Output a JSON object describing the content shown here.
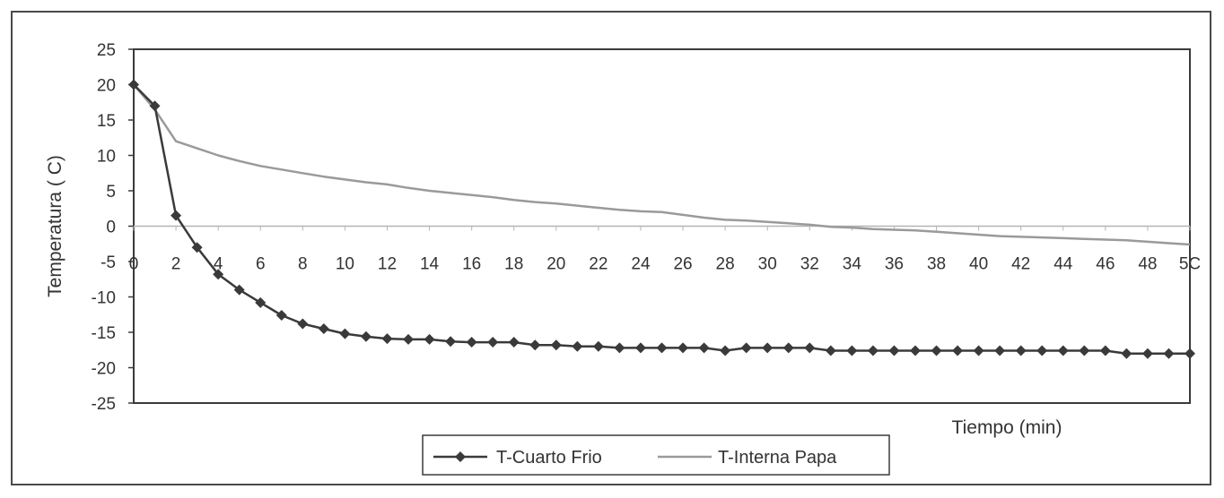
{
  "chart_data": {
    "type": "line",
    "title": "",
    "xlabel": "Tiempo (min)",
    "ylabel": "Temperatura ( C)",
    "xlim": [
      0,
      50
    ],
    "ylim": [
      -25,
      25
    ],
    "xticks": [
      "0",
      "2",
      "4",
      "6",
      "8",
      "10",
      "12",
      "14",
      "16",
      "18",
      "20",
      "22",
      "24",
      "26",
      "28",
      "30",
      "32",
      "34",
      "36",
      "38",
      "40",
      "42",
      "44",
      "46",
      "48",
      "5C"
    ],
    "yticks": [
      "25",
      "20",
      "15",
      "10",
      "5",
      "0",
      "-5",
      "-10",
      "-15",
      "-20",
      "-25"
    ],
    "grid": false,
    "legend_position": "bottom",
    "series": [
      {
        "name": "T-Cuarto Frio",
        "color": "#3a3a3a",
        "marker": "diamond",
        "x": [
          0,
          1,
          2,
          3,
          4,
          5,
          6,
          7,
          8,
          9,
          10,
          11,
          12,
          13,
          14,
          15,
          16,
          17,
          18,
          19,
          20,
          21,
          22,
          23,
          24,
          25,
          26,
          27,
          28,
          29,
          30,
          31,
          32,
          33,
          34,
          35,
          36,
          37,
          38,
          39,
          40,
          41,
          42,
          43,
          44,
          45,
          46,
          47,
          48,
          49,
          50
        ],
        "y": [
          20,
          17,
          1.5,
          -3,
          -6.8,
          -9,
          -10.8,
          -12.6,
          -13.8,
          -14.5,
          -15.2,
          -15.6,
          -15.9,
          -16,
          -16,
          -16.3,
          -16.4,
          -16.4,
          -16.4,
          -16.8,
          -16.8,
          -17,
          -17,
          -17.2,
          -17.2,
          -17.2,
          -17.2,
          -17.2,
          -17.6,
          -17.2,
          -17.2,
          -17.2,
          -17.2,
          -17.6,
          -17.6,
          -17.6,
          -17.6,
          -17.6,
          -17.6,
          -17.6,
          -17.6,
          -17.6,
          -17.6,
          -17.6,
          -17.6,
          -17.6,
          -17.6,
          -18,
          -18,
          -18,
          -18
        ]
      },
      {
        "name": "T-Interna Papa",
        "color": "#9a9a9a",
        "marker": "none",
        "x": [
          0,
          1,
          2,
          3,
          4,
          5,
          6,
          7,
          8,
          9,
          10,
          11,
          12,
          13,
          14,
          15,
          16,
          17,
          18,
          19,
          20,
          21,
          22,
          23,
          24,
          25,
          26,
          27,
          28,
          29,
          30,
          31,
          32,
          33,
          34,
          35,
          36,
          37,
          38,
          39,
          40,
          41,
          42,
          43,
          44,
          45,
          46,
          47,
          48,
          49,
          50
        ],
        "y": [
          20,
          16.5,
          12,
          11,
          10,
          9.2,
          8.5,
          8,
          7.5,
          7,
          6.6,
          6.2,
          5.9,
          5.4,
          5,
          4.7,
          4.4,
          4.1,
          3.7,
          3.4,
          3.2,
          2.9,
          2.6,
          2.3,
          2.1,
          2,
          1.6,
          1.2,
          0.9,
          0.8,
          0.6,
          0.4,
          0.2,
          -0.1,
          -0.2,
          -0.4,
          -0.5,
          -0.6,
          -0.8,
          -1,
          -1.2,
          -1.4,
          -1.5,
          -1.6,
          -1.7,
          -1.8,
          -1.9,
          -2,
          -2.2,
          -2.4,
          -2.6
        ]
      }
    ]
  }
}
